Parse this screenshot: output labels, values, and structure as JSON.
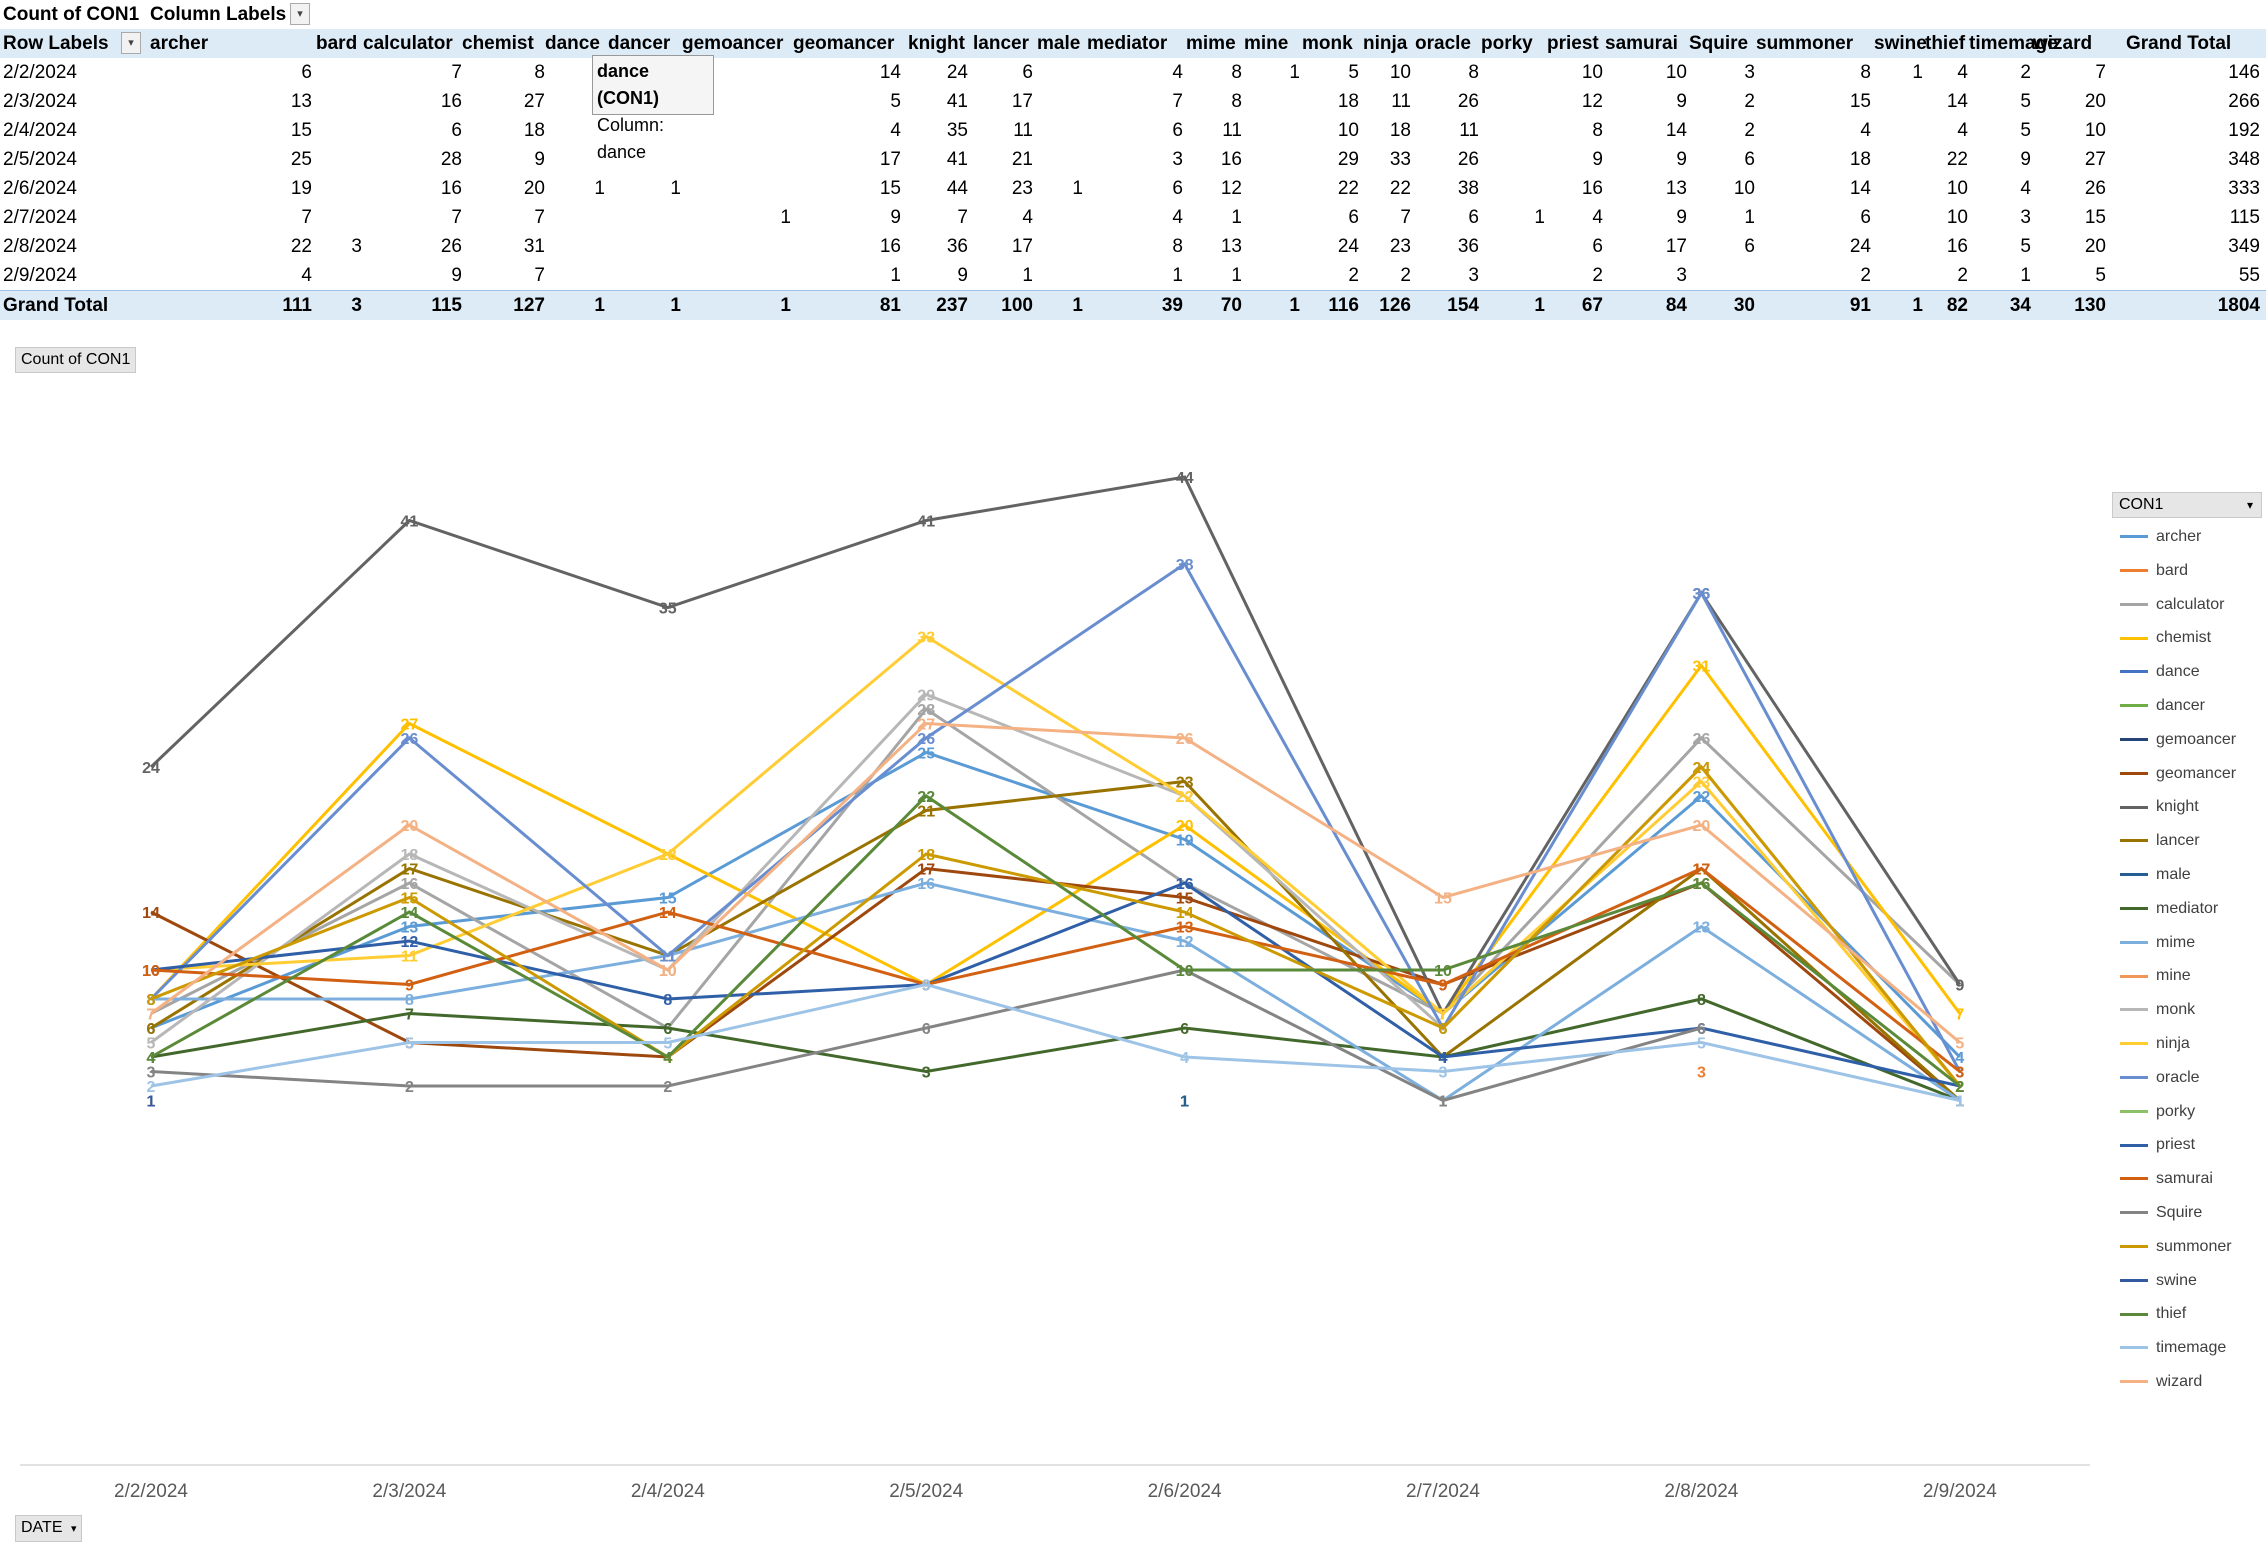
{
  "pivot": {
    "corner_label": "Count of CON1",
    "column_labels": "Column Labels",
    "row_labels": "Row Labels",
    "columns": [
      "archer",
      "bard",
      "calculator",
      "chemist",
      "dance",
      "dancer",
      "gemoancer",
      "geomancer",
      "knight",
      "lancer",
      "male",
      "mediator",
      "mime",
      "mine",
      "monk",
      "ninja",
      "oracle",
      "porky",
      "priest",
      "samurai",
      "Squire",
      "summoner",
      "swine",
      "thief",
      "timemage",
      "wizard",
      "Grand Total"
    ],
    "rows": [
      {
        "date": "2/2/2024",
        "values": [
          "6",
          "",
          "7",
          "8",
          "",
          "",
          "",
          "14",
          "24",
          "6",
          "",
          "4",
          "8",
          "1",
          "5",
          "10",
          "8",
          "",
          "10",
          "10",
          "3",
          "8",
          "1",
          "4",
          "2",
          "7",
          "146"
        ]
      },
      {
        "date": "2/3/2024",
        "values": [
          "13",
          "",
          "16",
          "27",
          "",
          "",
          "",
          "5",
          "41",
          "17",
          "",
          "7",
          "8",
          "",
          "18",
          "11",
          "26",
          "",
          "12",
          "9",
          "2",
          "15",
          "",
          "14",
          "5",
          "20",
          "266"
        ]
      },
      {
        "date": "2/4/2024",
        "values": [
          "15",
          "",
          "6",
          "18",
          "",
          "",
          "",
          "4",
          "35",
          "11",
          "",
          "6",
          "11",
          "",
          "10",
          "18",
          "11",
          "",
          "8",
          "14",
          "2",
          "4",
          "",
          "4",
          "5",
          "10",
          "192"
        ]
      },
      {
        "date": "2/5/2024",
        "values": [
          "25",
          "",
          "28",
          "9",
          "",
          "",
          "",
          "17",
          "41",
          "21",
          "",
          "3",
          "16",
          "",
          "29",
          "33",
          "26",
          "",
          "9",
          "9",
          "6",
          "18",
          "",
          "22",
          "9",
          "27",
          "348"
        ]
      },
      {
        "date": "2/6/2024",
        "values": [
          "19",
          "",
          "16",
          "20",
          "1",
          "1",
          "",
          "15",
          "44",
          "23",
          "1",
          "6",
          "12",
          "",
          "22",
          "22",
          "38",
          "",
          "16",
          "13",
          "10",
          "14",
          "",
          "10",
          "4",
          "26",
          "333"
        ]
      },
      {
        "date": "2/7/2024",
        "values": [
          "7",
          "",
          "7",
          "7",
          "",
          "",
          "1",
          "9",
          "7",
          "4",
          "",
          "4",
          "1",
          "",
          "6",
          "7",
          "6",
          "1",
          "4",
          "9",
          "1",
          "6",
          "",
          "10",
          "3",
          "15",
          "115"
        ]
      },
      {
        "date": "2/8/2024",
        "values": [
          "22",
          "3",
          "26",
          "31",
          "",
          "",
          "",
          "16",
          "36",
          "17",
          "",
          "8",
          "13",
          "",
          "24",
          "23",
          "36",
          "",
          "6",
          "17",
          "6",
          "24",
          "",
          "16",
          "5",
          "20",
          "349"
        ]
      },
      {
        "date": "2/9/2024",
        "values": [
          "4",
          "",
          "9",
          "7",
          "",
          "",
          "",
          "1",
          "9",
          "1",
          "",
          "1",
          "1",
          "",
          "2",
          "2",
          "3",
          "",
          "2",
          "3",
          "",
          "2",
          "",
          "2",
          "1",
          "5",
          "55"
        ]
      }
    ],
    "grand_total_label": "Grand Total",
    "grand_totals": [
      "111",
      "3",
      "115",
      "127",
      "1",
      "1",
      "1",
      "81",
      "237",
      "100",
      "1",
      "39",
      "70",
      "1",
      "116",
      "126",
      "154",
      "1",
      "67",
      "84",
      "30",
      "91",
      "1",
      "82",
      "34",
      "130",
      "1804"
    ]
  },
  "tooltip": {
    "line1": "dance (CON1)",
    "line2": "Column: dance"
  },
  "chart_field_button": "Count of CON1",
  "legend_title": "CON1",
  "axis_field_button": "DATE",
  "chart_data": {
    "type": "line",
    "title": "",
    "xlabel": "",
    "ylabel": "",
    "ylim": [
      0,
      45
    ],
    "grid": false,
    "legend_position": "right",
    "data_labels": true,
    "categories": [
      "2/2/2024",
      "2/3/2024",
      "2/4/2024",
      "2/5/2024",
      "2/6/2024",
      "2/7/2024",
      "2/8/2024",
      "2/9/2024"
    ],
    "series": [
      {
        "name": "archer",
        "color": "#5b9bd5",
        "values": [
          6,
          13,
          15,
          25,
          19,
          7,
          22,
          4
        ]
      },
      {
        "name": "bard",
        "color": "#ed7d31",
        "values": [
          null,
          null,
          null,
          null,
          null,
          null,
          3,
          null
        ]
      },
      {
        "name": "calculator",
        "color": "#a5a5a5",
        "values": [
          7,
          16,
          6,
          28,
          16,
          7,
          26,
          9
        ]
      },
      {
        "name": "chemist",
        "color": "#ffc000",
        "values": [
          8,
          27,
          18,
          9,
          20,
          7,
          31,
          7
        ]
      },
      {
        "name": "dance",
        "color": "#4472c4",
        "values": [
          null,
          null,
          null,
          null,
          1,
          null,
          null,
          null
        ]
      },
      {
        "name": "dancer",
        "color": "#70ad47",
        "values": [
          null,
          null,
          null,
          null,
          1,
          null,
          null,
          null
        ]
      },
      {
        "name": "gemoancer",
        "color": "#264478",
        "values": [
          null,
          null,
          null,
          null,
          null,
          1,
          null,
          null
        ]
      },
      {
        "name": "geomancer",
        "color": "#9e480e",
        "values": [
          14,
          5,
          4,
          17,
          15,
          9,
          16,
          1
        ]
      },
      {
        "name": "knight",
        "color": "#636363",
        "values": [
          24,
          41,
          35,
          41,
          44,
          7,
          36,
          9
        ]
      },
      {
        "name": "lancer",
        "color": "#997300",
        "values": [
          6,
          17,
          11,
          21,
          23,
          4,
          17,
          1
        ]
      },
      {
        "name": "male",
        "color": "#255e91",
        "values": [
          null,
          null,
          null,
          null,
          1,
          null,
          null,
          null
        ]
      },
      {
        "name": "mediator",
        "color": "#43682b",
        "values": [
          4,
          7,
          6,
          3,
          6,
          4,
          8,
          1
        ]
      },
      {
        "name": "mime",
        "color": "#7cafdd",
        "values": [
          8,
          8,
          11,
          16,
          12,
          1,
          13,
          1
        ]
      },
      {
        "name": "mine",
        "color": "#f1975a",
        "values": [
          1,
          null,
          null,
          null,
          null,
          null,
          null,
          null
        ]
      },
      {
        "name": "monk",
        "color": "#b7b7b7",
        "values": [
          5,
          18,
          10,
          29,
          22,
          6,
          24,
          2
        ]
      },
      {
        "name": "ninja",
        "color": "#ffcd33",
        "values": [
          10,
          11,
          18,
          33,
          22,
          7,
          23,
          2
        ]
      },
      {
        "name": "oracle",
        "color": "#698ed0",
        "values": [
          8,
          26,
          11,
          26,
          38,
          6,
          36,
          3
        ]
      },
      {
        "name": "porky",
        "color": "#8cc168",
        "values": [
          null,
          null,
          null,
          null,
          null,
          1,
          null,
          null
        ]
      },
      {
        "name": "priest",
        "color": "#2f5fa7",
        "values": [
          10,
          12,
          8,
          9,
          16,
          4,
          6,
          2
        ]
      },
      {
        "name": "samurai",
        "color": "#d26012",
        "values": [
          10,
          9,
          14,
          9,
          13,
          9,
          17,
          3
        ]
      },
      {
        "name": "Squire",
        "color": "#848484",
        "values": [
          3,
          2,
          2,
          6,
          10,
          1,
          6,
          null
        ]
      },
      {
        "name": "summoner",
        "color": "#cc9a00",
        "values": [
          8,
          15,
          4,
          18,
          14,
          6,
          24,
          2
        ]
      },
      {
        "name": "swine",
        "color": "#335aa1",
        "values": [
          1,
          null,
          null,
          null,
          null,
          null,
          null,
          null
        ]
      },
      {
        "name": "thief",
        "color": "#5a8a39",
        "values": [
          4,
          14,
          4,
          22,
          10,
          10,
          16,
          2
        ]
      },
      {
        "name": "timemage",
        "color": "#9dc3e6",
        "values": [
          2,
          5,
          5,
          9,
          4,
          3,
          5,
          1
        ]
      },
      {
        "name": "wizard",
        "color": "#f4b183",
        "values": [
          7,
          20,
          10,
          27,
          26,
          15,
          20,
          5
        ]
      }
    ]
  }
}
